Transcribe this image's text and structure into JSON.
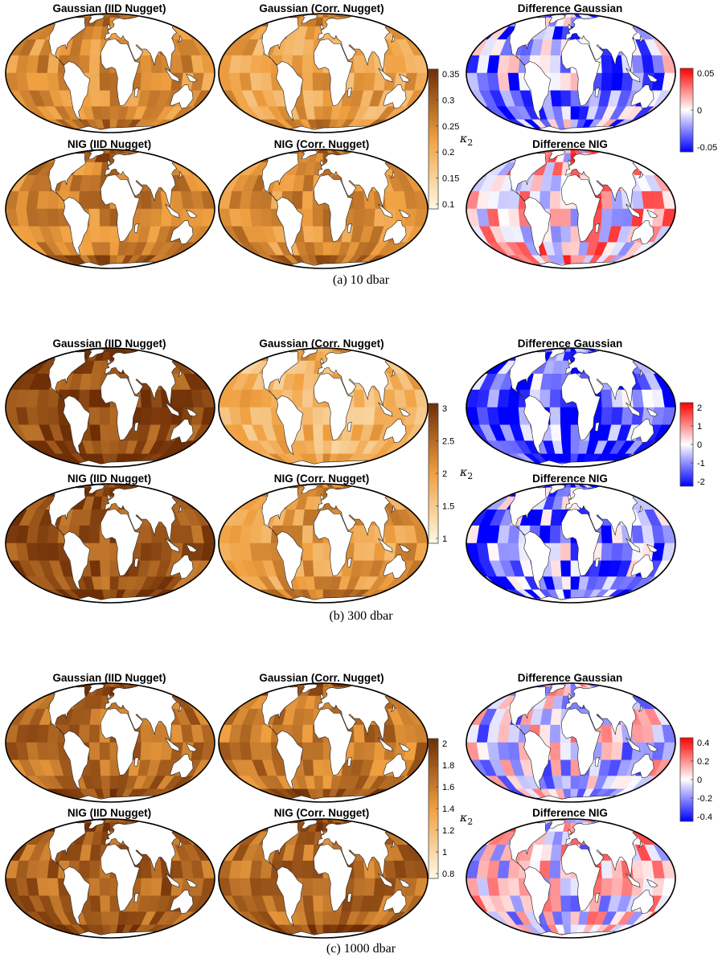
{
  "figure": {
    "panels": [
      {
        "caption": "(a) 10 dbar",
        "maps": [
          {
            "title": "Gaussian (IID Nugget)",
            "scale": "orange",
            "seed": 11,
            "bias": 0.15
          },
          {
            "title": "Gaussian (Corr. Nugget)",
            "scale": "orange",
            "seed": 12,
            "bias": 0.05
          },
          {
            "title": "Difference Gaussian",
            "scale": "diverging",
            "seed": 13,
            "bias": -0.35
          },
          {
            "title": "NIG (IID Nugget)",
            "scale": "orange",
            "seed": 14,
            "bias": 0.2
          },
          {
            "title": "NIG (Corr. Nugget)",
            "scale": "orange",
            "seed": 15,
            "bias": 0.15
          },
          {
            "title": "Difference NIG",
            "scale": "diverging",
            "seed": 16,
            "bias": 0.2
          }
        ],
        "seq_colorbar": {
          "label": "κ",
          "label_sub": "2",
          "ticks": [
            "0.35",
            "0.3",
            "0.25",
            "0.2",
            "0.15",
            "0.1"
          ]
        },
        "div_colorbar": {
          "ticks": [
            "0.05",
            "0",
            "-0.05"
          ]
        }
      },
      {
        "caption": "(b) 300 dbar",
        "maps": [
          {
            "title": "Gaussian (IID Nugget)",
            "scale": "orange",
            "seed": 21,
            "bias": 0.45
          },
          {
            "title": "Gaussian (Corr. Nugget)",
            "scale": "orange",
            "seed": 22,
            "bias": -0.05
          },
          {
            "title": "Difference Gaussian",
            "scale": "diverging",
            "seed": 23,
            "bias": -0.65
          },
          {
            "title": "NIG (IID Nugget)",
            "scale": "orange",
            "seed": 24,
            "bias": 0.4
          },
          {
            "title": "NIG (Corr. Nugget)",
            "scale": "orange",
            "seed": 25,
            "bias": 0.1
          },
          {
            "title": "Difference NIG",
            "scale": "diverging",
            "seed": 26,
            "bias": -0.45
          }
        ],
        "seq_colorbar": {
          "label": "κ",
          "label_sub": "2",
          "ticks": [
            "3",
            "2.5",
            "2",
            "1.5",
            "1"
          ]
        },
        "div_colorbar": {
          "ticks": [
            "2",
            "1",
            "0",
            "-1",
            "-2"
          ]
        }
      },
      {
        "caption": "(c) 1000 dbar",
        "maps": [
          {
            "title": "Gaussian (IID Nugget)",
            "scale": "orange",
            "seed": 31,
            "bias": 0.3
          },
          {
            "title": "Gaussian (Corr. Nugget)",
            "scale": "orange",
            "seed": 32,
            "bias": 0.25
          },
          {
            "title": "Difference Gaussian",
            "scale": "diverging",
            "seed": 33,
            "bias": -0.1
          },
          {
            "title": "NIG (IID Nugget)",
            "scale": "orange",
            "seed": 34,
            "bias": 0.35
          },
          {
            "title": "NIG (Corr. Nugget)",
            "scale": "orange",
            "seed": 35,
            "bias": 0.3
          },
          {
            "title": "Difference NIG",
            "scale": "diverging",
            "seed": 36,
            "bias": 0.0
          }
        ],
        "seq_colorbar": {
          "label": "κ",
          "label_sub": "2",
          "ticks": [
            "2",
            "1.8",
            "1.6",
            "1.4",
            "1.2",
            "1",
            "0.8"
          ]
        },
        "div_colorbar": {
          "ticks": [
            "0.4",
            "0.2",
            "0",
            "-0.2",
            "-0.4"
          ]
        }
      }
    ],
    "colors": {
      "orange_low": "#fff9e3",
      "orange_mid": "#f0a040",
      "orange_high": "#6e2e06",
      "div_low": "#0000ff",
      "div_mid": "#ffffff",
      "div_high": "#ff0000",
      "land": "#ffffff",
      "outline": "#000000"
    }
  }
}
